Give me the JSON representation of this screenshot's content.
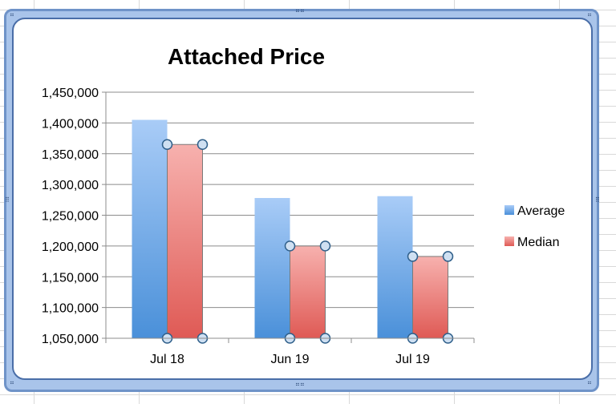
{
  "chart_data": {
    "type": "bar",
    "title": "Attached Price",
    "categories": [
      "Jul 18",
      "Jun 19",
      "Jul 19"
    ],
    "series": [
      {
        "name": "Average",
        "values": [
          1405000,
          1278000,
          1281000
        ],
        "color_top": "#a9ccf7",
        "color_bottom": "#4a90d9"
      },
      {
        "name": "Median",
        "values": [
          1365000,
          1200000,
          1183000
        ],
        "color_top": "#f7b1ae",
        "color_bottom": "#df5a55"
      }
    ],
    "ylim": [
      1050000,
      1450000
    ],
    "yticks": [
      1050000,
      1100000,
      1150000,
      1200000,
      1250000,
      1300000,
      1350000,
      1400000,
      1450000
    ],
    "ytick_labels": [
      "1,050,000",
      "1,100,000",
      "1,150,000",
      "1,200,000",
      "1,250,000",
      "1,300,000",
      "1,350,000",
      "1,400,000",
      "1,450,000"
    ],
    "grid": true,
    "legend_position": "right",
    "selected_series": "Median"
  }
}
